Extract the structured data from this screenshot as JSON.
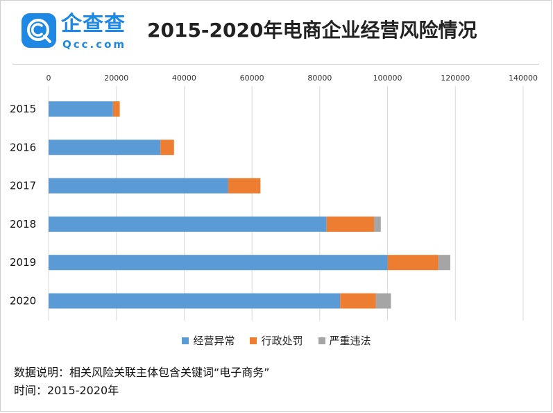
{
  "header": {
    "logo_name": "企查查",
    "logo_domain": "Qcc.com",
    "title": "2015-2020年电商企业经营风险情况"
  },
  "colors": {
    "brand": "#1e88e5",
    "series_abnormal": "#5b9bd5",
    "series_penalty": "#ed7d31",
    "series_violation": "#a5a5a5"
  },
  "chart_data": {
    "type": "bar",
    "orientation": "horizontal",
    "stacked": true,
    "categories": [
      "2015",
      "2016",
      "2017",
      "2018",
      "2019",
      "2020"
    ],
    "series": [
      {
        "name": "经营异常",
        "color": "#5b9bd5",
        "values": [
          19000,
          33000,
          53000,
          82000,
          100000,
          86000
        ]
      },
      {
        "name": "行政处罚",
        "color": "#ed7d31",
        "values": [
          2000,
          4000,
          9500,
          14000,
          15000,
          10500
        ]
      },
      {
        "name": "严重违法",
        "color": "#a5a5a5",
        "values": [
          0,
          0,
          0,
          2000,
          3500,
          4500
        ]
      }
    ],
    "xlim": [
      0,
      140000
    ],
    "xticks": [
      "0",
      "20000",
      "40000",
      "60000",
      "80000",
      "100000",
      "120000",
      "140000"
    ],
    "axis_position": "top",
    "grid": true,
    "legend": "bottom"
  },
  "footer": {
    "note": "数据说明：相关风险关联主体包含关键词“电子商务”",
    "time": "时间：2015-2020年"
  }
}
